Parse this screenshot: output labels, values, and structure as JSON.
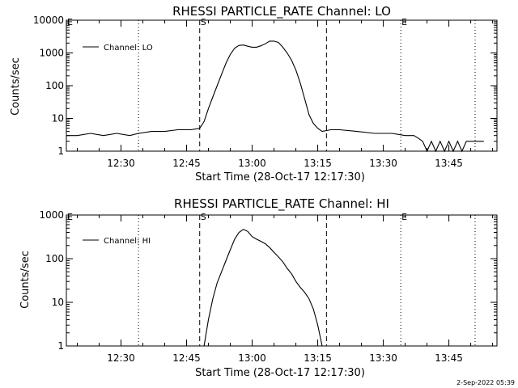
{
  "footer": "2-Sep-2022 05:39",
  "chart_data": [
    {
      "type": "line",
      "title": "RHESSI PARTICLE_RATE Channel: LO",
      "xlabel": "Start Time (28-Oct-17 12:17:30)",
      "ylabel": "Counts/sec",
      "y_scale": "log",
      "ylim": [
        1,
        10000
      ],
      "ytick_values": [
        1,
        10,
        100,
        1000,
        10000
      ],
      "ytick_labels": [
        "1",
        "10",
        "100",
        "1000",
        "10000"
      ],
      "xlim": [
        "12:17:30",
        "13:56:00"
      ],
      "xtick_values": [
        "12:30",
        "12:45",
        "13:00",
        "13:15",
        "13:30",
        "13:45"
      ],
      "xtick_labels": [
        "12:30",
        "12:45",
        "13:00",
        "13:15",
        "13:30",
        "13:45"
      ],
      "legend": {
        "position": "top-left",
        "entries": [
          "Channel: LO"
        ]
      },
      "markers": [
        {
          "time": "12:17:30",
          "label": "E",
          "style": "dotted"
        },
        {
          "time": "12:34:00",
          "label": "",
          "style": "dotted"
        },
        {
          "time": "12:48:00",
          "label": "S",
          "style": "dashed"
        },
        {
          "time": "13:17:00",
          "label": "",
          "style": "dashed"
        },
        {
          "time": "13:34:00",
          "label": "E",
          "style": "dotted"
        },
        {
          "time": "13:51:00",
          "label": "",
          "style": "dotted"
        }
      ],
      "series": [
        {
          "name": "Channel: LO",
          "x": [
            "12:17:30",
            "12:20:00",
            "12:23:00",
            "12:26:00",
            "12:29:00",
            "12:32:00",
            "12:34:00",
            "12:37:00",
            "12:40:00",
            "12:43:00",
            "12:46:00",
            "12:48:00",
            "12:49:00",
            "12:50:00",
            "12:51:00",
            "12:52:00",
            "12:53:00",
            "12:54:00",
            "12:55:00",
            "12:56:00",
            "12:57:00",
            "12:58:00",
            "12:59:00",
            "13:00:00",
            "13:01:00",
            "13:02:00",
            "13:03:00",
            "13:04:00",
            "13:05:00",
            "13:06:00",
            "13:07:00",
            "13:08:00",
            "13:09:00",
            "13:10:00",
            "13:11:00",
            "13:12:00",
            "13:13:00",
            "13:14:00",
            "13:15:00",
            "13:16:00",
            "13:18:00",
            "13:20:00",
            "13:24:00",
            "13:28:00",
            "13:32:00",
            "13:35:00",
            "13:37:00",
            "13:38:00",
            "13:39:00",
            "13:40:00",
            "13:41:00",
            "13:42:00",
            "13:43:00",
            "13:44:00",
            "13:45:00",
            "13:46:00",
            "13:47:00",
            "13:48:00",
            "13:49:00",
            "13:50:00",
            "13:51:00",
            "13:53:00"
          ],
          "y": [
            3,
            3,
            3.5,
            3,
            3.5,
            3,
            3.5,
            4,
            4,
            4.5,
            4.5,
            5,
            8,
            20,
            45,
            100,
            220,
            480,
            900,
            1400,
            1700,
            1750,
            1600,
            1500,
            1500,
            1650,
            1900,
            2300,
            2300,
            2100,
            1500,
            1000,
            600,
            300,
            120,
            40,
            13,
            7,
            5,
            4,
            4.5,
            4.5,
            4,
            3.5,
            3.5,
            3,
            3,
            2.5,
            2,
            1,
            2,
            1,
            2,
            1,
            2,
            1,
            2,
            1,
            2,
            2,
            2,
            2
          ]
        }
      ]
    },
    {
      "type": "line",
      "title": "RHESSI PARTICLE_RATE Channel: HI",
      "xlabel": "Start Time (28-Oct-17 12:17:30)",
      "ylabel": "Counts/sec",
      "y_scale": "log",
      "ylim": [
        1,
        1000
      ],
      "ytick_values": [
        1,
        10,
        100,
        1000
      ],
      "ytick_labels": [
        "1",
        "10",
        "100",
        "1000"
      ],
      "xlim": [
        "12:17:30",
        "13:56:00"
      ],
      "xtick_values": [
        "12:30",
        "12:45",
        "13:00",
        "13:15",
        "13:30",
        "13:45"
      ],
      "xtick_labels": [
        "12:30",
        "12:45",
        "13:00",
        "13:15",
        "13:30",
        "13:45"
      ],
      "legend": {
        "position": "top-left",
        "entries": [
          "Channel: HI"
        ]
      },
      "markers": [
        {
          "time": "12:17:30",
          "label": "E",
          "style": "dotted"
        },
        {
          "time": "12:34:00",
          "label": "",
          "style": "dotted"
        },
        {
          "time": "12:48:00",
          "label": "S",
          "style": "dashed"
        },
        {
          "time": "13:17:00",
          "label": "",
          "style": "dashed"
        },
        {
          "time": "13:34:00",
          "label": "E",
          "style": "dotted"
        },
        {
          "time": "13:51:00",
          "label": "",
          "style": "dotted"
        }
      ],
      "series": [
        {
          "name": "Channel: HI",
          "x": [
            "12:49:00",
            "12:50:00",
            "12:51:00",
            "12:52:00",
            "12:53:00",
            "12:54:00",
            "12:55:00",
            "12:56:00",
            "12:57:00",
            "12:58:00",
            "12:59:00",
            "13:00:00",
            "13:01:00",
            "13:02:00",
            "13:03:00",
            "13:04:00",
            "13:05:00",
            "13:06:00",
            "13:07:00",
            "13:08:00",
            "13:09:00",
            "13:10:00",
            "13:11:00",
            "13:12:00",
            "13:13:00",
            "13:14:00",
            "13:15:00",
            "13:16:00"
          ],
          "y": [
            1,
            4,
            12,
            28,
            50,
            90,
            160,
            280,
            400,
            470,
            420,
            320,
            280,
            250,
            220,
            180,
            140,
            110,
            85,
            60,
            45,
            30,
            22,
            17,
            12,
            7,
            3,
            1
          ]
        }
      ]
    }
  ]
}
